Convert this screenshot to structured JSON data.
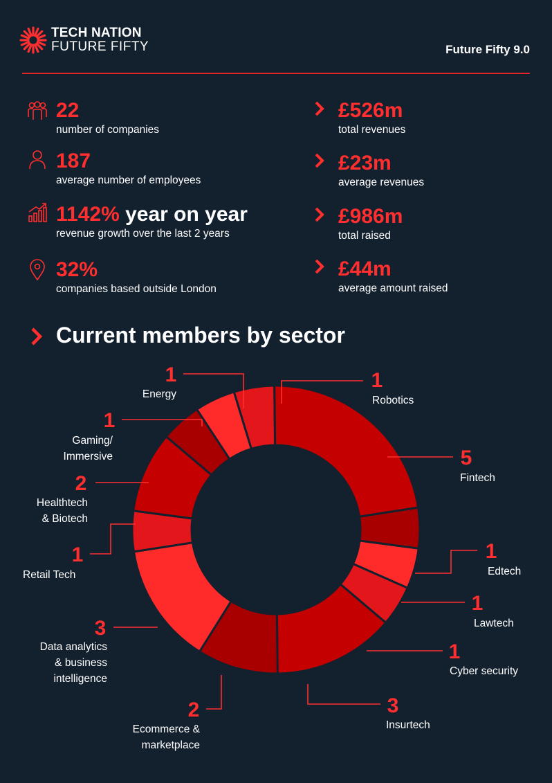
{
  "header": {
    "logo_line1": "TECH NATION",
    "logo_line2": "FUTURE FIFTY",
    "edition": "Future Fifty 9.0"
  },
  "stats_left": [
    {
      "value": "22",
      "label": "number of companies",
      "icon": "people-icon"
    },
    {
      "value": "187",
      "label": "average number of employees",
      "icon": "person-icon"
    },
    {
      "value": "1142%",
      "value_suffix": "year on year",
      "label": "revenue growth over the last 2 years",
      "icon": "growth-chart-icon"
    },
    {
      "value": "32%",
      "label": "companies based outside London",
      "icon": "location-pin-icon"
    }
  ],
  "stats_right": [
    {
      "value": "£526m",
      "label": "total revenues"
    },
    {
      "value": "£23m",
      "label": "average revenues"
    },
    {
      "value": "£986m",
      "label": "total raised"
    },
    {
      "value": "£44m",
      "label": "average amount raised"
    }
  ],
  "section_title": "Current members by sector",
  "colors": {
    "background": "#13202e",
    "accent": "#ff2f2f",
    "slice_palette": [
      "#e3161b",
      "#c40000",
      "#a80000",
      "#ff2b2b"
    ]
  },
  "chart_data": {
    "type": "pie",
    "donut": true,
    "title": "Current members by sector",
    "slices": [
      {
        "label": "Robotics",
        "value": 1,
        "color": "#e3161b"
      },
      {
        "label": "Fintech",
        "value": 5,
        "color": "#c40000"
      },
      {
        "label": "Edtech",
        "value": 1,
        "color": "#a80000"
      },
      {
        "label": "Lawtech",
        "value": 1,
        "color": "#ff2b2b"
      },
      {
        "label": "Cyber security",
        "value": 1,
        "color": "#e3161b"
      },
      {
        "label": "Insurtech",
        "value": 3,
        "color": "#c40000"
      },
      {
        "label": "Ecommerce & marketplace",
        "value": 2,
        "color": "#a80000"
      },
      {
        "label": "Data analytics & business intelligence",
        "value": 3,
        "color": "#ff2b2b"
      },
      {
        "label": "Retail Tech",
        "value": 1,
        "color": "#e3161b"
      },
      {
        "label": "Healthtech & Biotech",
        "value": 2,
        "color": "#c40000"
      },
      {
        "label": "Gaming/ Immersive",
        "value": 1,
        "color": "#a80000"
      },
      {
        "label": "Energy",
        "value": 1,
        "color": "#ff2b2b"
      }
    ]
  }
}
